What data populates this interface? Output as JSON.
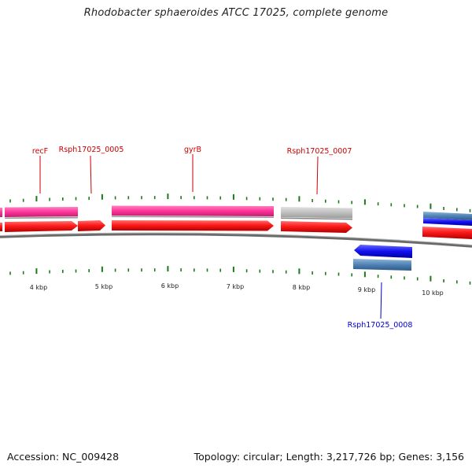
{
  "title": "Rhodobacter sphaeroides ATCC 17025, complete genome",
  "footer": {
    "accession": "Accession: NC_009428",
    "summary": "Topology: circular; Length: 3,217,726 bp; Genes: 3,156"
  },
  "colors": {
    "gene_label_red": "#cc0000",
    "gene_label_blue": "#0000cc",
    "cds_forward": "#ff1a1a",
    "cds_reverse": "#1010ee",
    "gene_forward": "#ff3399",
    "gene_reverse": "#4f82b4",
    "gene_other": "#c0c0c0",
    "tick": "#1a7a1a",
    "backbone": "#777777"
  },
  "scale_labels": [
    "4 kbp",
    "5 kbp",
    "6 kbp",
    "7 kbp",
    "8 kbp",
    "9 kbp",
    "10 kbp"
  ],
  "gene_labels": [
    {
      "name": "recF",
      "strand": "forward"
    },
    {
      "name": "Rsph17025_0005",
      "strand": "forward"
    },
    {
      "name": "gyrB",
      "strand": "forward"
    },
    {
      "name": "Rsph17025_0007",
      "strand": "forward"
    },
    {
      "name": "Rsph17025_0008",
      "strand": "reverse"
    }
  ]
}
